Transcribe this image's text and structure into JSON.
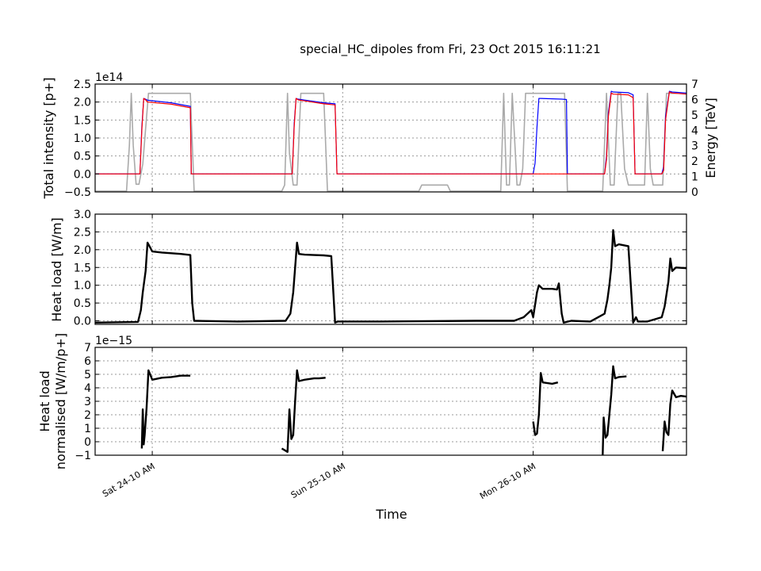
{
  "chart_data": [
    {
      "type": "line",
      "title": "special_HC_dipoles from Fri, 23 Oct 2015 16:11:21",
      "ylabel": "Total intensity [p+]",
      "y_offset_label": "1e14",
      "ylim": [
        -0.5,
        2.5
      ],
      "yticks": [
        "−0.5",
        "0.0",
        "0.5",
        "1.0",
        "1.5",
        "2.0",
        "2.5"
      ],
      "ytick_values": [
        -0.5,
        0,
        0.5,
        1,
        1.5,
        2,
        2.5
      ],
      "ylabel_right": "Energy [TeV]",
      "ylim_right": [
        0,
        7
      ],
      "yticks_right": [
        "0",
        "1",
        "2",
        "3",
        "4",
        "5",
        "6",
        "7"
      ],
      "xlim_hours": [
        0,
        62.1
      ],
      "grid": true,
      "series": [
        {
          "color": "#0000ff",
          "axis": "left",
          "x": [
            0,
            4.7,
            4.9,
            5.1,
            5.3,
            5.5,
            8,
            10,
            10.1,
            20.5,
            20.7,
            20.9,
            21.1,
            21.3,
            24,
            25.2,
            25.4,
            46,
            46.2,
            46.4,
            46.6,
            46.8,
            49,
            49.5,
            49.6,
            53.5,
            53.7,
            53.9,
            54.2,
            54.4,
            56,
            56.5,
            56.7,
            59.5,
            59.7,
            59.9,
            60.3,
            60.6,
            62.1
          ],
          "y": [
            0,
            0,
            1.3,
            2.1,
            2.08,
            2.05,
            1.98,
            1.88,
            0,
            0,
            0,
            1.4,
            2.1,
            2.08,
            1.98,
            1.95,
            0,
            0,
            0.3,
            1.3,
            2.1,
            2.1,
            2.08,
            2.07,
            0,
            0,
            0.5,
            1.7,
            2.3,
            2.28,
            2.26,
            2.2,
            0,
            0,
            0.2,
            1.6,
            2.3,
            2.28,
            2.25
          ]
        },
        {
          "color": "#ff0000",
          "axis": "left",
          "x": [
            0,
            4.7,
            4.9,
            5.1,
            5.3,
            5.5,
            8,
            10,
            10.1,
            20.5,
            20.7,
            20.9,
            21.1,
            21.3,
            24,
            25.2,
            25.4,
            46,
            48,
            48.2,
            53.5,
            53.7,
            53.9,
            54.2,
            54.4,
            56,
            56.5,
            56.7,
            59.5,
            59.7,
            59.9,
            60.3,
            60.6,
            62.1
          ],
          "y": [
            0,
            0,
            1.2,
            2.1,
            2.06,
            2.0,
            1.94,
            1.84,
            0,
            0,
            0,
            1.3,
            2.1,
            2.06,
            1.95,
            1.92,
            0,
            0,
            0,
            0,
            0,
            0.4,
            1.6,
            2.25,
            2.22,
            2.2,
            2.12,
            0,
            0,
            0.1,
            1.5,
            2.28,
            2.25,
            2.22
          ]
        },
        {
          "color": "#aaaaaa",
          "axis": "right",
          "x": [
            0,
            3.3,
            3.6,
            3.8,
            4.0,
            4.3,
            4.6,
            5.0,
            5.6,
            10,
            10.4,
            19.6,
            19.9,
            20.2,
            20.4,
            20.8,
            21.2,
            21.6,
            24,
            24.4,
            34,
            34.3,
            37,
            37.3,
            42.6,
            42.9,
            43.2,
            43.5,
            43.8,
            44.3,
            44.6,
            44.9,
            45.2,
            45.6,
            46,
            46.3,
            49.3,
            49.6,
            53.3,
            53.7,
            54.1,
            54.5,
            54.9,
            55.2,
            55.6,
            56,
            57.7,
            58,
            58.3,
            58.6,
            59,
            59.6,
            60,
            60.3,
            62.1
          ],
          "y": [
            0.05,
            0.05,
            3,
            6.4,
            3,
            0.5,
            0.5,
            1.8,
            6.4,
            6.4,
            0.05,
            0.05,
            0.45,
            6.4,
            2.5,
            0.45,
            0.45,
            6.4,
            6.4,
            0.05,
            0.05,
            0.45,
            0.45,
            0.05,
            0.05,
            6.4,
            0.45,
            0.45,
            6.4,
            0.45,
            0.45,
            1.5,
            6.4,
            6.4,
            6.4,
            6.4,
            6.4,
            0.05,
            0.05,
            6.4,
            0.45,
            0.45,
            6.4,
            6.4,
            1.5,
            0.45,
            0.45,
            6.4,
            1.5,
            0.45,
            0.45,
            0.45,
            6.4,
            6.4,
            6.4
          ]
        }
      ]
    },
    {
      "type": "line",
      "ylabel": "Heat load [W/m]",
      "ylim": [
        -0.1,
        3.0
      ],
      "yticks": [
        "0.0",
        "0.5",
        "1.0",
        "1.5",
        "2.0",
        "2.5",
        "3.0"
      ],
      "ytick_values": [
        0,
        0.5,
        1,
        1.5,
        2,
        2.5,
        3
      ],
      "xlim_hours": [
        0,
        62.1
      ],
      "grid": true,
      "series": [
        {
          "color": "#000000",
          "x": [
            0,
            4.5,
            4.8,
            5.0,
            5.3,
            5.5,
            6,
            7,
            8,
            9,
            10,
            10.2,
            10.4,
            15,
            20,
            20.5,
            20.8,
            21,
            21.2,
            21.4,
            22,
            23,
            24,
            24.8,
            25.2,
            25.5,
            30,
            40,
            44,
            45,
            45.8,
            46,
            46.4,
            46.6,
            47,
            48,
            48.5,
            48.7,
            49,
            49.2,
            50,
            52,
            53.5,
            53.8,
            54.0,
            54.2,
            54.4,
            54.6,
            55,
            56,
            56.5,
            56.8,
            57,
            58,
            59.5,
            59.8,
            60.2,
            60.4,
            60.6,
            61,
            62.1
          ],
          "y": [
            -0.05,
            -0.03,
            0.3,
            0.8,
            1.4,
            2.2,
            1.95,
            1.92,
            1.9,
            1.88,
            1.85,
            0.5,
            0.0,
            -0.02,
            0.0,
            0.2,
            0.8,
            1.5,
            2.2,
            1.88,
            1.86,
            1.85,
            1.84,
            1.82,
            -0.05,
            -0.02,
            -0.02,
            0.0,
            0.0,
            0.1,
            0.3,
            0.1,
            0.8,
            1.0,
            0.9,
            0.9,
            0.88,
            1.05,
            0.2,
            -0.05,
            0.0,
            -0.02,
            0.2,
            0.6,
            1.0,
            1.5,
            2.55,
            2.1,
            2.15,
            2.1,
            -0.05,
            0.1,
            -0.02,
            -0.02,
            0.1,
            0.4,
            1.1,
            1.75,
            1.4,
            1.5,
            1.48
          ]
        }
      ]
    },
    {
      "type": "line",
      "ylabel": "Heat load normalised [W/m/p+]",
      "y_offset_label": "1e−15",
      "ylim": [
        -1,
        7
      ],
      "yticks": [
        "−1",
        "0",
        "1",
        "2",
        "3",
        "4",
        "5",
        "6",
        "7"
      ],
      "ytick_values": [
        -1,
        0,
        1,
        2,
        3,
        4,
        5,
        6,
        7
      ],
      "xlim_hours": [
        0,
        62.1
      ],
      "xlabel": "Time",
      "xticks": [
        "Sat 24-10 AM",
        "Sun 25-10 AM",
        "Mon 26-10 AM"
      ],
      "xtick_hours": [
        6.0,
        26.0,
        46.0
      ],
      "grid": true,
      "series": [
        {
          "color": "#000000",
          "x": [
            4.9,
            5.0,
            5.1,
            5.2,
            5.4,
            5.6,
            6,
            7,
            8,
            9,
            10.0
          ],
          "y": [
            -0.5,
            2.4,
            -0.2,
            0.5,
            2.5,
            5.3,
            4.6,
            4.75,
            4.8,
            4.9,
            4.9
          ]
        },
        {
          "color": "#000000",
          "x": [
            19.6,
            20.2,
            20.4,
            20.6,
            20.8,
            21.0,
            21.2,
            21.4,
            22,
            23,
            23.5,
            24.2
          ],
          "y": [
            -0.5,
            -0.75,
            2.4,
            0.2,
            0.5,
            3.0,
            5.3,
            4.5,
            4.6,
            4.7,
            4.7,
            4.75
          ]
        },
        {
          "color": "#000000",
          "x": [
            46.0,
            46.2,
            46.4,
            46.6,
            46.8,
            47,
            48,
            48.6
          ],
          "y": [
            1.5,
            0.5,
            0.6,
            2.0,
            5.1,
            4.4,
            4.3,
            4.4
          ]
        },
        {
          "color": "#000000",
          "x": [
            53.3,
            53.4,
            53.6,
            53.8,
            54.2,
            54.4,
            54.6,
            55,
            55.8
          ],
          "y": [
            -1,
            1.8,
            0.3,
            0.5,
            3.5,
            5.6,
            4.7,
            4.8,
            4.85
          ]
        },
        {
          "color": "#000000",
          "x": [
            59.6,
            59.8,
            60.0,
            60.2,
            60.4,
            60.6,
            61,
            61.5,
            62.1
          ],
          "y": [
            -0.7,
            1.5,
            0.7,
            0.5,
            2.8,
            3.8,
            3.3,
            3.4,
            3.35
          ]
        }
      ]
    }
  ]
}
